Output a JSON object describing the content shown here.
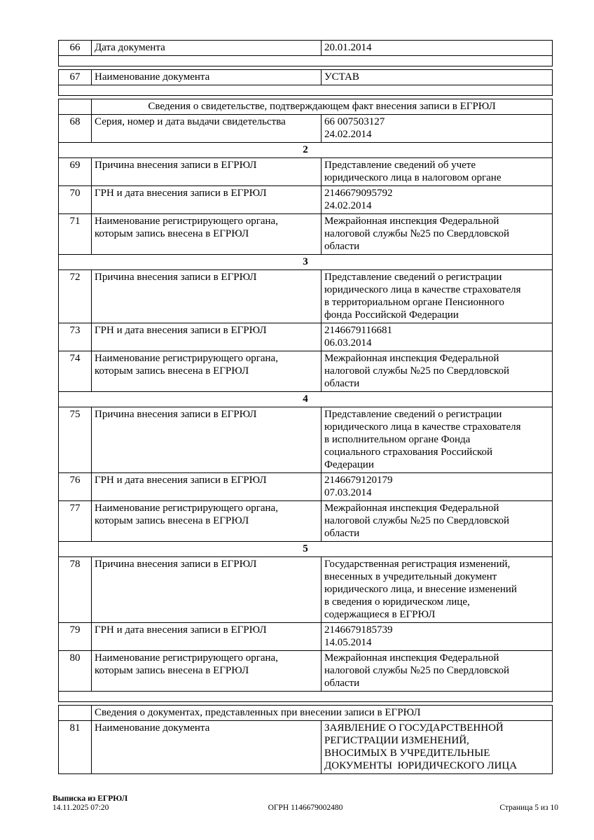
{
  "colors": {
    "background": "#ffffff",
    "text": "#000000",
    "border": "#000000"
  },
  "headers": {
    "certificate": "Сведения о свидетельстве, подтверждающем факт внесения записи в ЕГРЮЛ",
    "documents": "Сведения о документах, представленных при внесении записи в ЕГРЮЛ"
  },
  "sections": {
    "s2": "2",
    "s3": "3",
    "s4": "4",
    "s5": "5"
  },
  "rows": {
    "r66": {
      "num": "66",
      "label": "Дата документа",
      "value": "20.01.2014"
    },
    "r67": {
      "num": "67",
      "label": "Наименование документа",
      "value": "УСТАВ"
    },
    "r68": {
      "num": "68",
      "label": "Серия, номер и дата выдачи свидетельства",
      "value": "66 007503127\n24.02.2014"
    },
    "r69": {
      "num": "69",
      "label": "Причина внесения записи в ЕГРЮЛ",
      "value": "Представление сведений об учете\nюридического лица в налоговом органе"
    },
    "r70": {
      "num": "70",
      "label": "ГРН и дата внесения записи в ЕГРЮЛ",
      "value": "2146679095792\n24.02.2014"
    },
    "r71": {
      "num": "71",
      "label": "Наименование регистрирующего органа,\nкоторым запись внесена в ЕГРЮЛ",
      "value": "Межрайонная инспекция Федеральной\nналоговой службы №25 по Свердловской\nобласти"
    },
    "r72": {
      "num": "72",
      "label": "Причина внесения записи в ЕГРЮЛ",
      "value": "Представление сведений о регистрации\nюридического лица в качестве страхователя\nв территориальном органе Пенсионного\nфонда Российской Федерации"
    },
    "r73": {
      "num": "73",
      "label": "ГРН и дата внесения записи в ЕГРЮЛ",
      "value": "2146679116681\n06.03.2014"
    },
    "r74": {
      "num": "74",
      "label": "Наименование регистрирующего органа,\nкоторым запись внесена в ЕГРЮЛ",
      "value": "Межрайонная инспекция Федеральной\nналоговой службы №25 по Свердловской\nобласти"
    },
    "r75": {
      "num": "75",
      "label": "Причина внесения записи в ЕГРЮЛ",
      "value": "Представление сведений о регистрации\nюридического лица в качестве страхователя\nв исполнительном органе Фонда\nсоциального страхования Российской\nФедерации"
    },
    "r76": {
      "num": "76",
      "label": "ГРН и дата внесения записи в ЕГРЮЛ",
      "value": "2146679120179\n07.03.2014"
    },
    "r77": {
      "num": "77",
      "label": "Наименование регистрирующего органа,\nкоторым запись внесена в ЕГРЮЛ",
      "value": "Межрайонная инспекция Федеральной\nналоговой службы №25 по Свердловской\nобласти"
    },
    "r78": {
      "num": "78",
      "label": "Причина внесения записи в ЕГРЮЛ",
      "value": "Государственная регистрация изменений,\nвнесенных в учредительный документ\nюридического лица, и внесение изменений\nв сведения о юридическом лице,\nсодержащиеся в ЕГРЮЛ"
    },
    "r79": {
      "num": "79",
      "label": "ГРН и дата внесения записи в ЕГРЮЛ",
      "value": "2146679185739\n14.05.2014"
    },
    "r80": {
      "num": "80",
      "label": "Наименование регистрирующего органа,\nкоторым запись внесена в ЕГРЮЛ",
      "value": "Межрайонная инспекция Федеральной\nналоговой службы №25 по Свердловской\nобласти"
    },
    "r81": {
      "num": "81",
      "label": "Наименование документа",
      "value": "ЗАЯВЛЕНИЕ О ГОСУДАРСТВЕННОЙ\nРЕГИСТРАЦИИ ИЗМЕНЕНИЙ,\nВНОСИМЫХ В УЧРЕДИТЕЛЬНЫЕ\nДОКУМЕНТЫ  ЮРИДИЧЕСКОГО ЛИЦА"
    }
  },
  "footer": {
    "doc_type": "Выписка из ЕГРЮЛ",
    "datetime": "14.11.2025 07:20",
    "ogrn": "ОГРН 1146679002480",
    "page_info": "Страница 5 из 10"
  }
}
